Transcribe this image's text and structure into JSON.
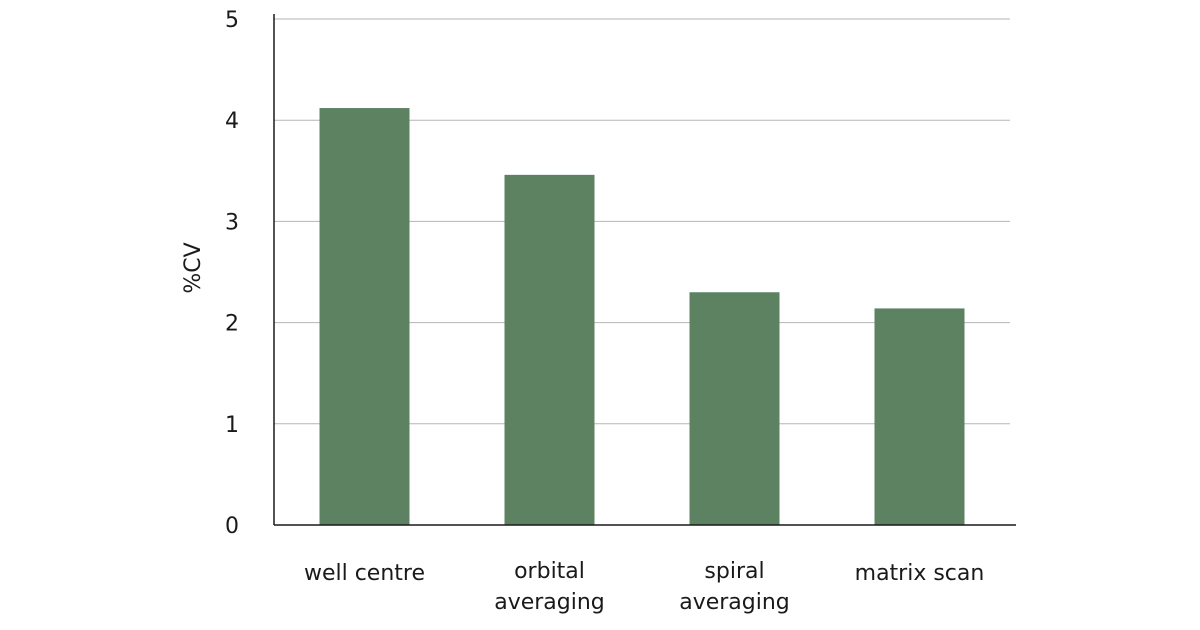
{
  "chart_data": {
    "type": "bar",
    "title": "",
    "xlabel": "",
    "ylabel": "%CV",
    "ylim": [
      0,
      5
    ],
    "yticks": [
      "0",
      "1",
      "2",
      "3",
      "4",
      "5"
    ],
    "grid": true,
    "legend": "none",
    "bar_color": "#5c8262",
    "categories": [
      [
        "well centre"
      ],
      [
        "orbital",
        "averaging"
      ],
      [
        "spiral",
        "averaging"
      ],
      [
        "matrix scan"
      ]
    ],
    "values": [
      4.12,
      3.46,
      2.3,
      2.14
    ]
  }
}
